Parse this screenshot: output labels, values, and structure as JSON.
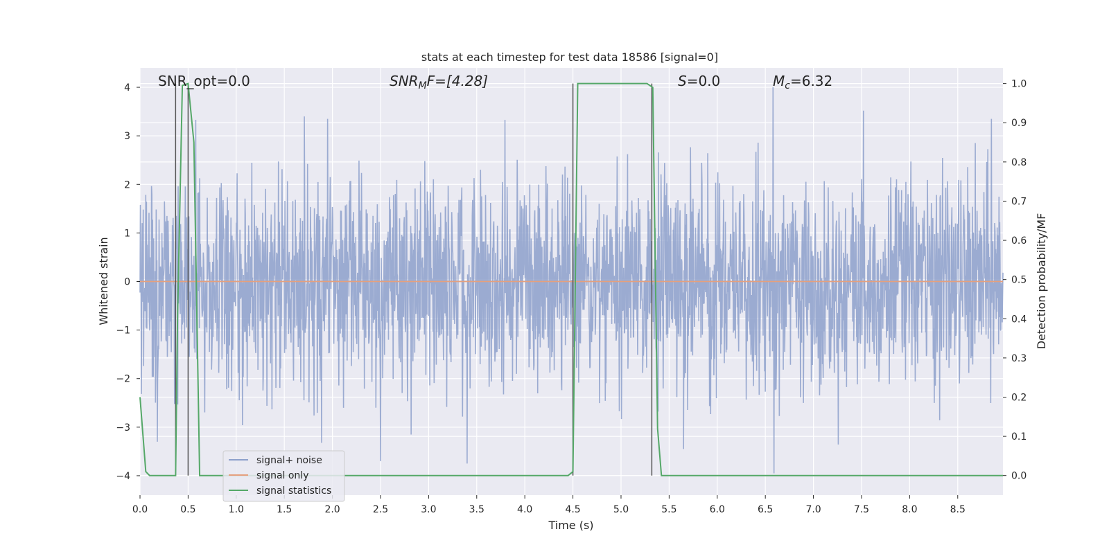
{
  "chart_data": {
    "type": "line",
    "title": "stats at each timestep for test data 18586 [signal=0]",
    "xlabel": "Time (s)",
    "ylabel_left": "Whitened strain",
    "ylabel_right": "Detection probability/MF",
    "xlim": [
      0.0,
      8.97
    ],
    "ylim_left": [
      -4.4,
      4.4
    ],
    "ylim_right": [
      -0.05,
      1.04
    ],
    "x_ticks": [
      "0.0",
      "0.5",
      "1.0",
      "1.5",
      "2.0",
      "2.5",
      "3.0",
      "3.5",
      "4.0",
      "4.5",
      "5.0",
      "5.5",
      "6.0",
      "6.5",
      "7.0",
      "7.5",
      "8.0",
      "8.5"
    ],
    "x_tick_values": [
      0.0,
      0.5,
      1.0,
      1.5,
      2.0,
      2.5,
      3.0,
      3.5,
      4.0,
      4.5,
      5.0,
      5.5,
      6.0,
      6.5,
      7.0,
      7.5,
      8.0,
      8.5
    ],
    "y_left_ticks": [
      "4",
      "3",
      "2",
      "1",
      "0",
      "−1",
      "−2",
      "−3",
      "−4"
    ],
    "y_left_tick_values": [
      4,
      3,
      2,
      1,
      0,
      -1,
      -2,
      -3,
      -4
    ],
    "y_right_ticks": [
      "1.0",
      "0.9",
      "0.8",
      "0.7",
      "0.6",
      "0.5",
      "0.4",
      "0.3",
      "0.2",
      "0.1",
      "0.0"
    ],
    "y_right_tick_values": [
      1.0,
      0.9,
      0.8,
      0.7,
      0.6,
      0.5,
      0.4,
      0.3,
      0.2,
      0.1,
      0.0
    ],
    "grid": true,
    "legend_position": "bottom-left",
    "annotations": {
      "snr_opt": "SNR_opt=0.0",
      "snr_mf_sym": "SNR",
      "snr_mf_sub": "M",
      "snr_mf_rest": "F=[4.28]",
      "s_sym": "S",
      "s_rest": "=0.0",
      "mc_sym": "M",
      "mc_sub": "c",
      "mc_rest": "=6.32"
    },
    "series": [
      {
        "name": "signal+ noise",
        "color": "#8da0cb",
        "kind": "noise",
        "amplitude_envelope": {
          "typical_abs": 1.6,
          "max": 4.0,
          "min": -3.95
        },
        "peaks": [
          [
            6.58,
            4.0
          ],
          [
            6.59,
            -3.95
          ],
          [
            2.5,
            -3.7
          ],
          [
            3.4,
            -3.75
          ],
          [
            7.52,
            3.52
          ],
          [
            1.95,
            3.35
          ],
          [
            8.85,
            3.35
          ],
          [
            0.18,
            -3.3
          ],
          [
            5.65,
            -3.45
          ]
        ]
      },
      {
        "name": "signal only",
        "color": "#e5a07e",
        "x": [
          0.0,
          8.97
        ],
        "y": [
          0.0,
          0.0
        ]
      },
      {
        "name": "signal statistics",
        "color": "#55a868",
        "axis": "right",
        "x": [
          0.0,
          0.06,
          0.1,
          0.37,
          0.39,
          0.44,
          0.5,
          0.56,
          0.62,
          4.45,
          4.5,
          4.55,
          5.27,
          5.33,
          5.38,
          5.42,
          8.97
        ],
        "y": [
          0.2,
          0.01,
          0.0,
          0.0,
          0.4,
          0.995,
          1.0,
          0.85,
          0.0,
          0.0,
          0.01,
          1.0,
          1.0,
          0.99,
          0.12,
          0.0,
          0.0
        ]
      }
    ],
    "vertical_markers": [
      0.37,
      0.5,
      4.5,
      5.32
    ]
  },
  "legend": {
    "items": [
      {
        "label": "signal+ noise",
        "color": "#8da0cb"
      },
      {
        "label": "signal only",
        "color": "#e5a07e"
      },
      {
        "label": "signal statistics",
        "color": "#55a868"
      }
    ]
  }
}
